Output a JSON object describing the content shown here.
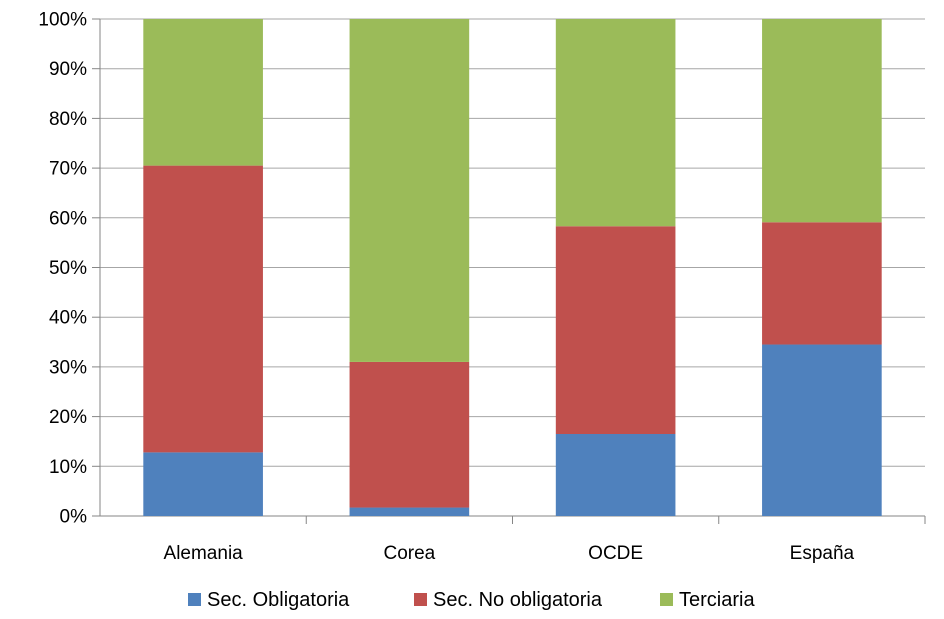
{
  "chart_data": {
    "type": "bar",
    "stacked": true,
    "percent": true,
    "categories": [
      "Alemania",
      "Corea",
      "OCDE",
      "España"
    ],
    "series": [
      {
        "name": "Sec. Obligatoria",
        "color": "#4F81BD",
        "values": [
          12.8,
          1.7,
          16.5,
          34.5
        ]
      },
      {
        "name": "Sec. No obligatoria",
        "color": "#C0504D",
        "values": [
          57.7,
          29.3,
          41.8,
          24.6
        ]
      },
      {
        "name": "Terciaria",
        "color": "#9BBB59",
        "values": [
          29.5,
          69.0,
          41.7,
          40.9
        ]
      }
    ],
    "ylim": [
      0,
      100
    ],
    "yticks": [
      "0%",
      "10%",
      "20%",
      "30%",
      "40%",
      "50%",
      "60%",
      "70%",
      "80%",
      "90%",
      "100%"
    ],
    "grid": true,
    "legend_position": "bottom"
  }
}
